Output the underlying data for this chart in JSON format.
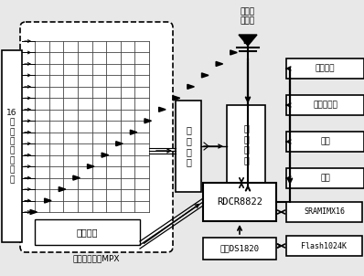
{
  "bg_color": "#e8e8e8",
  "box_fill": "#ffffff",
  "lc": "#000000",
  "blocks": {
    "mpx_label": "多路转换开关MPX",
    "decoder_label": "译码电路",
    "adc_label": "模\n数\n转\n换",
    "meter_label": "计\n里\n芯\n片",
    "rdcr_label": "RDCR8822",
    "clock_label": "时钟DS1820",
    "wireless_label": "无线发\n射模块",
    "out1": "报警输出",
    "out2": "多功能输出",
    "out3": "显示",
    "out4": "按键",
    "out5": "SRAMIMX16",
    "out6": "Flash1024K"
  },
  "input_label": "16\n路\n取\n样\n信\n号\n输\n入",
  "figsize": [
    3.98,
    3.02
  ],
  "dpi": 100
}
